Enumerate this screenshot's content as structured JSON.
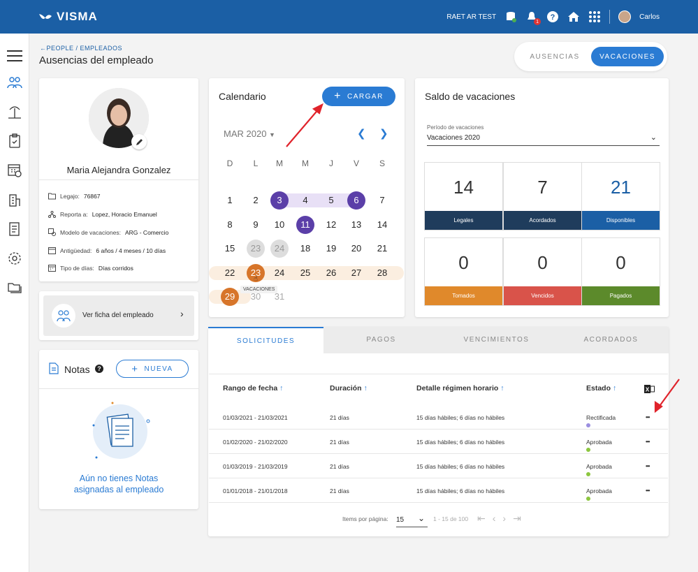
{
  "topbar": {
    "logo": "VISMA",
    "company": "RAET AR TEST",
    "notif_count": "1",
    "user_name": "Carlos"
  },
  "breadcrumb": {
    "people": "PEOPLE",
    "sep": " / ",
    "empleados": "EMPLEADOS"
  },
  "page_title": "Ausencias del empleado",
  "top_tabs": {
    "ausencias": "AUSENCIAS",
    "vacaciones": "VACACIONES"
  },
  "employee": {
    "name": "Maria Alejandra Gonzalez",
    "info": [
      {
        "label": "Legajo:",
        "value": "76867",
        "icon": "folder-icon"
      },
      {
        "label": "Reporta a:",
        "value": "Lopez, Horacio Emanuel",
        "icon": "org-chart-icon"
      },
      {
        "label": "Modelo de vacaciones:",
        "value": "ARG - Comercio",
        "icon": "model-icon"
      },
      {
        "label": "Antigüedad:",
        "value": "6 años / 4 meses / 10 días",
        "icon": "calendar-icon"
      },
      {
        "label": "Tipo de días:",
        "value": "Días corridos",
        "icon": "calendar-days-icon"
      }
    ]
  },
  "ficha": {
    "label": "Ver ficha del empleado"
  },
  "notas": {
    "title": "Notas",
    "new_button": "NUEVA",
    "empty_line1": "Aún no tienes Notas",
    "empty_line2": "asignadas al empleado"
  },
  "calendar": {
    "title": "Calendario",
    "button": "CARGAR",
    "month": "MAR 2020",
    "dow": [
      "D",
      "L",
      "M",
      "M",
      "J",
      "V",
      "S"
    ],
    "weeks": [
      [
        "1",
        "2",
        "3",
        "4",
        "5",
        "6",
        "7"
      ],
      [
        "8",
        "9",
        "10",
        "11",
        "12",
        "13",
        "14"
      ],
      [
        "15",
        "23",
        "24",
        "18",
        "19",
        "20",
        "21"
      ],
      [
        "22",
        "23",
        "24",
        "25",
        "26",
        "27",
        "28"
      ],
      [
        "29",
        "30",
        "31"
      ]
    ],
    "tooltip": "VACACIONES"
  },
  "saldo": {
    "title": "Saldo de vacaciones",
    "period_label": "Período de vacaciones",
    "period_value": "Vacaciones 2020",
    "stats": [
      {
        "value": "14",
        "label": "Legales",
        "color": "#1f3c5c"
      },
      {
        "value": "7",
        "label": "Acordados",
        "color": "#1f3c5c"
      },
      {
        "value": "21",
        "label": "Disponibles",
        "color": "#1b5fa5"
      },
      {
        "value": "0",
        "label": "Tomados",
        "color": "#e0892b"
      },
      {
        "value": "0",
        "label": "Vencidos",
        "color": "#d9534a"
      },
      {
        "value": "0",
        "label": "Pagados",
        "color": "#5c8a2b"
      }
    ]
  },
  "tabs": [
    "SOLICITUDES",
    "PAGOS",
    "VENCIMIENTOS",
    "ACORDADOS"
  ],
  "table": {
    "headers": [
      "Rango de fecha",
      "Duración",
      "Detalle régimen horario",
      "Estado"
    ],
    "rows": [
      {
        "rango": "01/03/2021 - 21/03/2021",
        "duracion": "21 días",
        "detalle": "15 días hábiles; 6 días no hábiles",
        "estado": "Rectificada",
        "color": "#9b8fe0"
      },
      {
        "rango": "01/02/2020 - 21/02/2020",
        "duracion": "21 días",
        "detalle": "15 días hábiles; 6 días no hábiles",
        "estado": "Aprobada",
        "color": "#8cc63f"
      },
      {
        "rango": "01/03/2019 - 21/03/2019",
        "duracion": "21 días",
        "detalle": "15 días hábiles; 6 días no hábiles",
        "estado": "Aprobada",
        "color": "#8cc63f"
      },
      {
        "rango": "01/01/2018 - 21/01/2018",
        "duracion": "21 días",
        "detalle": "15 días hábiles; 6 días no hábiles",
        "estado": "Aprobada",
        "color": "#8cc63f"
      }
    ]
  },
  "pager": {
    "label": "Items por página:",
    "size": "15",
    "range": "1 - 15 de 100"
  }
}
